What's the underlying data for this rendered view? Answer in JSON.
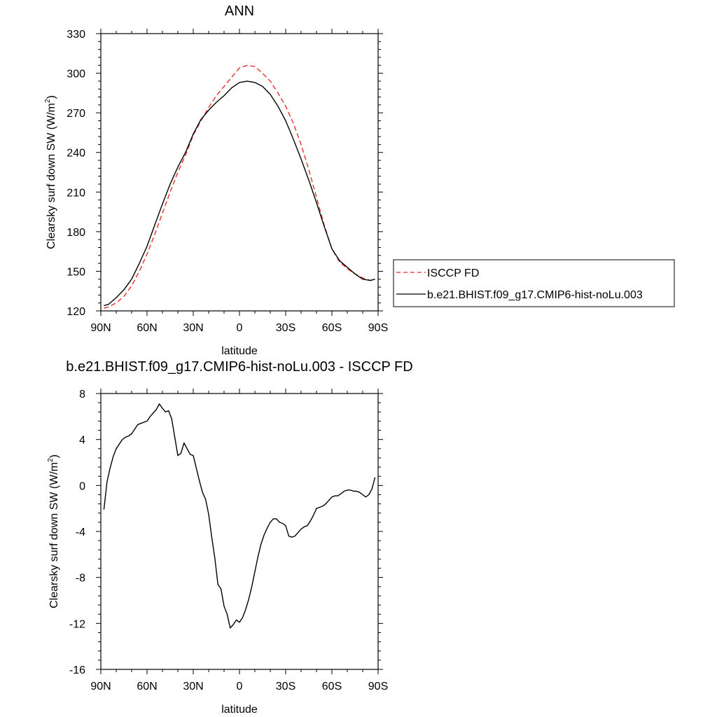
{
  "chart_data": [
    {
      "type": "line",
      "title": "ANN",
      "xlabel": "latitude",
      "ylabel": "Clearsky surf down SW (W/m²)",
      "ylabel_main": "Clearsky surf down SW (W/m",
      "ylabel_sup": "2",
      "ylabel_end": ")",
      "xlim": [
        90,
        -90
      ],
      "ylim": [
        120,
        330
      ],
      "xticks": [
        90,
        60,
        30,
        0,
        -30,
        -60,
        -90
      ],
      "xtick_labels": [
        "90N",
        "60N",
        "30N",
        "0",
        "30S",
        "60S",
        "90S"
      ],
      "yticks": [
        120,
        150,
        180,
        210,
        240,
        270,
        300,
        330
      ],
      "ytick_labels": [
        "120",
        "150",
        "180",
        "210",
        "240",
        "270",
        "300",
        "330"
      ],
      "legend_position": "right",
      "series": [
        {
          "name": "ISCCP FD",
          "color": "#e8312f",
          "dash": "dashed",
          "x": [
            88,
            85,
            80,
            75,
            70,
            65,
            60,
            55,
            50,
            45,
            40,
            35,
            30,
            25,
            20,
            15,
            10,
            5,
            0,
            -5,
            -10,
            -15,
            -20,
            -25,
            -30,
            -35,
            -40,
            -45,
            -50,
            -55,
            -60,
            -65,
            -70,
            -75,
            -80,
            -85,
            -88
          ],
          "y": [
            122,
            123,
            126,
            131,
            139,
            150,
            163,
            178,
            194,
            210,
            225,
            238,
            253,
            264,
            274,
            283,
            290,
            297,
            304,
            306,
            305,
            300,
            294,
            285,
            275,
            262,
            246,
            227,
            206,
            185,
            167,
            157,
            152,
            148,
            145,
            143,
            144
          ]
        },
        {
          "name": "b.e21.BHIST.f09_g17.CMIP6-hist-noLu.003",
          "color": "#000000",
          "dash": "solid",
          "x": [
            88,
            85,
            80,
            75,
            70,
            65,
            60,
            55,
            50,
            45,
            40,
            35,
            30,
            25,
            20,
            15,
            10,
            5,
            0,
            -5,
            -10,
            -15,
            -20,
            -25,
            -30,
            -35,
            -40,
            -45,
            -50,
            -55,
            -60,
            -65,
            -70,
            -75,
            -80,
            -85,
            -88
          ],
          "y": [
            124,
            125,
            130,
            136,
            144,
            156,
            169,
            185,
            201,
            216,
            229,
            240,
            254,
            265,
            272,
            278,
            283,
            289,
            293,
            294,
            293,
            290,
            284,
            275,
            264,
            250,
            235,
            219,
            202,
            184,
            167,
            158,
            153,
            148,
            144,
            143,
            144
          ]
        }
      ]
    },
    {
      "type": "line",
      "title": "b.e21.BHIST.f09_g17.CMIP6-hist-noLu.003 - ISCCP FD",
      "xlabel": "latitude",
      "ylabel": "Clearsky surf down SW (W/m²)",
      "ylabel_main": "Clearsky surf down SW (W/m",
      "ylabel_sup": "2",
      "ylabel_end": ")",
      "xlim": [
        90,
        -90
      ],
      "ylim": [
        -16,
        8
      ],
      "xticks": [
        90,
        60,
        30,
        0,
        -30,
        -60,
        -90
      ],
      "xtick_labels": [
        "90N",
        "60N",
        "30N",
        "0",
        "30S",
        "60S",
        "90S"
      ],
      "yticks": [
        -16,
        -12,
        -8,
        -4,
        0,
        4,
        8
      ],
      "ytick_labels": [
        "-16",
        "-12",
        "-8",
        "-4",
        "0",
        "4",
        "8"
      ],
      "series": [
        {
          "color": "#000000",
          "dash": "solid",
          "x": [
            88,
            86,
            84,
            82,
            80,
            78,
            76,
            74,
            72,
            70,
            68,
            66,
            64,
            62,
            60,
            58,
            56,
            54,
            52,
            50,
            48,
            46,
            44,
            42,
            40,
            38,
            36,
            34,
            32,
            30,
            28,
            26,
            24,
            22,
            20,
            18,
            16,
            14,
            12,
            10,
            8,
            6,
            4,
            2,
            0,
            -2,
            -4,
            -6,
            -8,
            -10,
            -12,
            -14,
            -16,
            -18,
            -20,
            -22,
            -24,
            -26,
            -28,
            -30,
            -32,
            -34,
            -36,
            -38,
            -40,
            -42,
            -44,
            -46,
            -48,
            -50,
            -52,
            -54,
            -56,
            -58,
            -60,
            -62,
            -64,
            -66,
            -68,
            -70,
            -72,
            -74,
            -76,
            -78,
            -80,
            -82,
            -84,
            -86,
            -88
          ],
          "y": [
            -2.1,
            0.3,
            1.5,
            2.5,
            3.2,
            3.6,
            4.0,
            4.2,
            4.3,
            4.5,
            4.9,
            5.3,
            5.4,
            5.5,
            5.6,
            6.0,
            6.3,
            6.6,
            7.1,
            6.7,
            6.4,
            6.5,
            5.8,
            4.2,
            2.6,
            2.8,
            3.7,
            3.2,
            2.7,
            2.6,
            1.5,
            0.4,
            -0.6,
            -1.2,
            -2.5,
            -4.5,
            -6.3,
            -8.6,
            -9.0,
            -10.5,
            -11.2,
            -12.4,
            -12.1,
            -11.7,
            -11.9,
            -11.5,
            -10.8,
            -9.9,
            -8.8,
            -7.5,
            -6.2,
            -5.1,
            -4.3,
            -3.7,
            -3.2,
            -2.9,
            -2.9,
            -3.2,
            -3.3,
            -3.5,
            -4.4,
            -4.5,
            -4.4,
            -4.1,
            -3.8,
            -3.6,
            -3.5,
            -3.1,
            -2.6,
            -2.0,
            -1.9,
            -1.8,
            -1.6,
            -1.3,
            -1.0,
            -0.9,
            -0.9,
            -0.7,
            -0.5,
            -0.4,
            -0.4,
            -0.5,
            -0.5,
            -0.6,
            -0.8,
            -1.0,
            -0.8,
            -0.3,
            0.7
          ]
        }
      ]
    }
  ]
}
